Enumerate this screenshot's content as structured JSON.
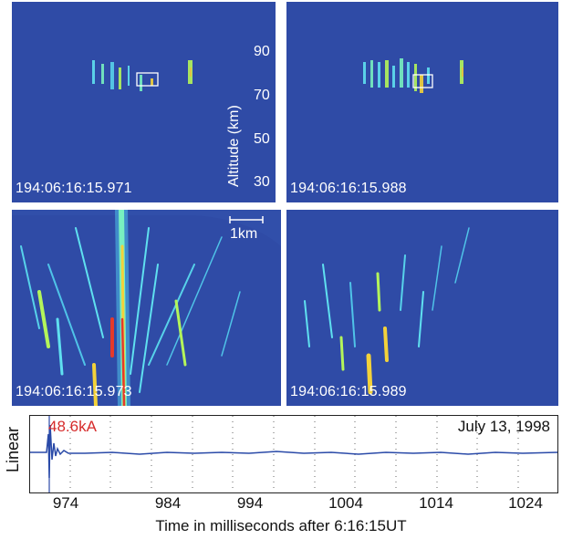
{
  "panels": [
    {
      "timestamp": "194:06:16:15.971"
    },
    {
      "timestamp": "194:06:16:15.988"
    },
    {
      "timestamp": "194:06:16:15.973"
    },
    {
      "timestamp": "194:06:16:15.989"
    }
  ],
  "altitude_axis": {
    "title": "Altitude (km)",
    "ticks": [
      "90",
      "70",
      "50",
      "30"
    ]
  },
  "scale_bar": {
    "label": "1km"
  },
  "trace": {
    "peak_label": "48.6kA",
    "date_label": "July 13, 1998",
    "ylabel": "Linear",
    "xlabel": "Time in milliseconds after 6:16:15UT",
    "xticks": [
      "974",
      "984",
      "994",
      "1004",
      "1014",
      "1024"
    ]
  },
  "colors": {
    "background": "#2d49a4",
    "peak_label": "#d62b2b",
    "trace_line": "#2a4aa8"
  }
}
